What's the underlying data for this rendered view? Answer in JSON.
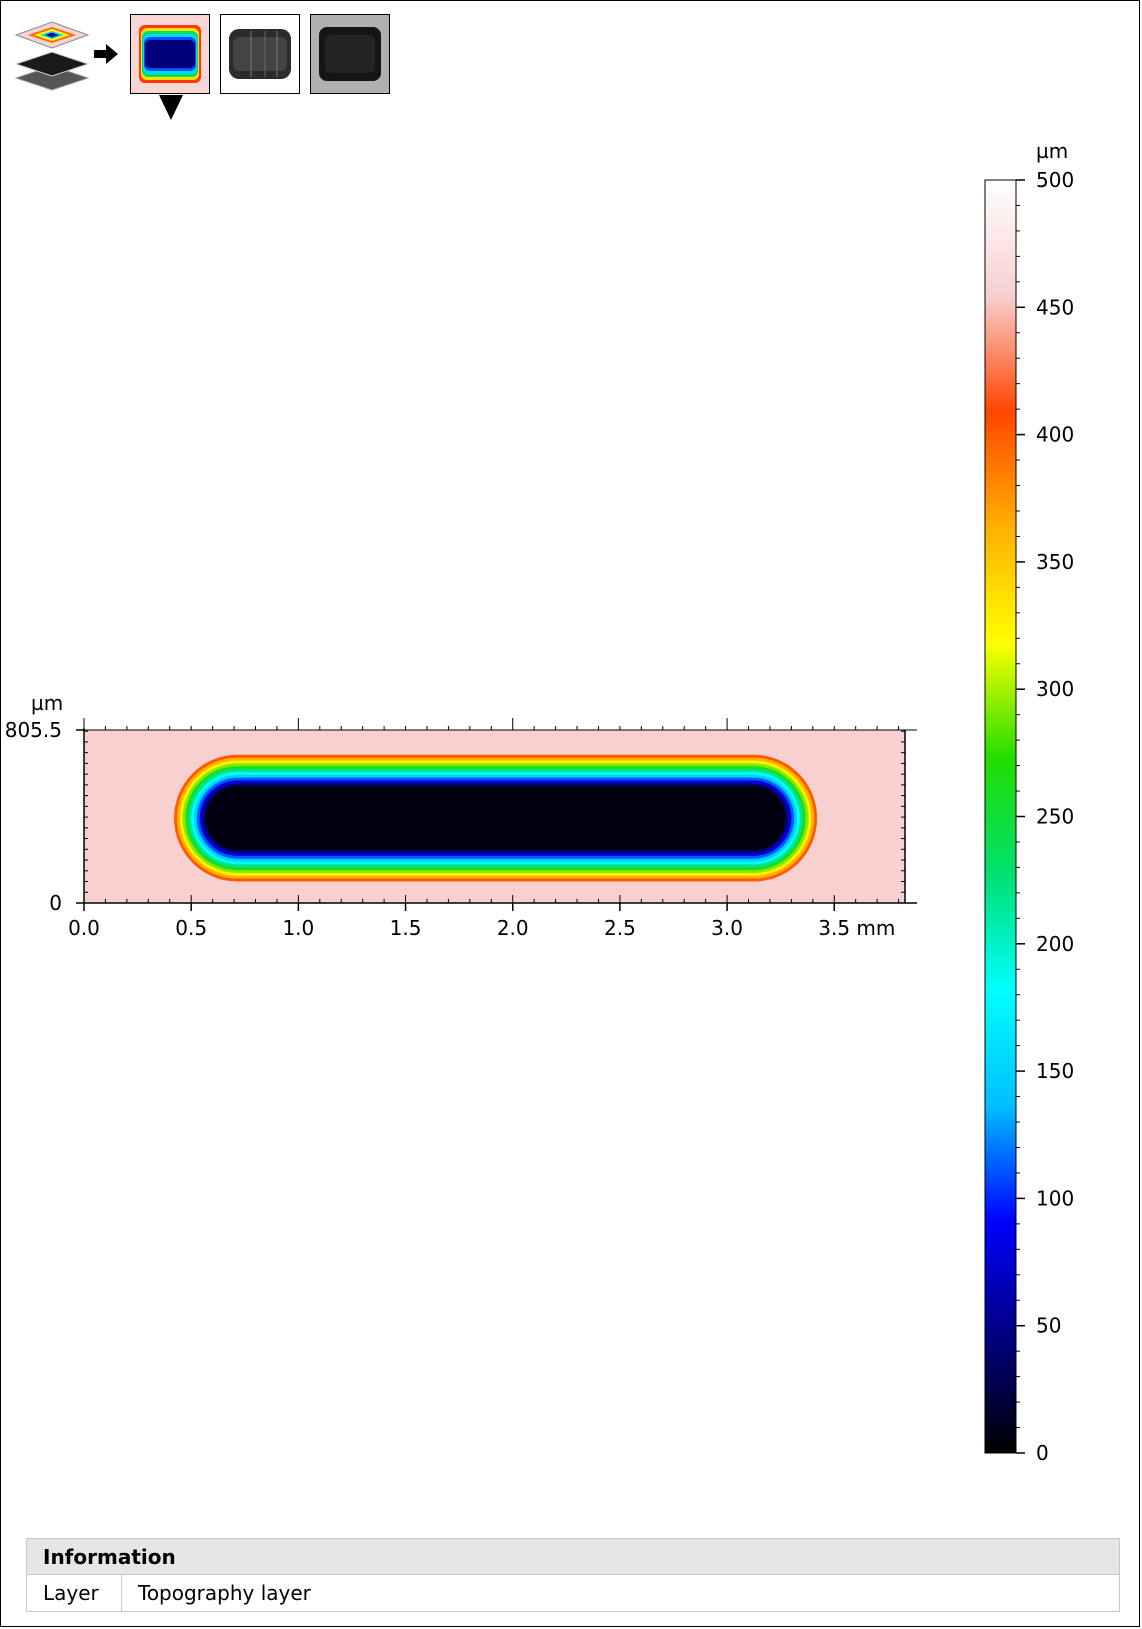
{
  "toolbar": {
    "icons": [
      "layers-icon",
      "arrow-right-icon",
      "selector-triangle-icon"
    ],
    "thumbnails": [
      {
        "name": "topography-thumbnail",
        "selected": true
      },
      {
        "name": "intensity-thumbnail",
        "selected": false
      },
      {
        "name": "texture-thumbnail",
        "selected": false
      }
    ]
  },
  "chart_data": {
    "type": "heatmap",
    "x_axis": {
      "ticks": [
        "0.0",
        "0.5",
        "1.0",
        "1.5",
        "2.0",
        "2.5",
        "3.0",
        "3.5 mm"
      ],
      "tick_values": [
        0.0,
        0.5,
        1.0,
        1.5,
        2.0,
        2.5,
        3.0,
        3.5
      ],
      "unit": "mm",
      "range": [
        0,
        3.83
      ]
    },
    "y_axis": {
      "unit_label": "µm",
      "ticks": [
        "0",
        "805.5"
      ],
      "tick_values": [
        0,
        805.5
      ],
      "range": [
        0,
        805.5
      ]
    },
    "colorbar": {
      "unit_label": "µm",
      "ticks": [
        "0",
        "50",
        "100",
        "150",
        "200",
        "250",
        "300",
        "350",
        "400",
        "450",
        "500"
      ],
      "tick_values": [
        0,
        50,
        100,
        150,
        200,
        250,
        300,
        350,
        400,
        450,
        500
      ],
      "range": [
        0,
        500
      ],
      "colors": [
        "#000000",
        "#000080",
        "#0000ff",
        "#00bfff",
        "#00ffff",
        "#00e070",
        "#22dd00",
        "#ffff00",
        "#ffb000",
        "#ff4500",
        "#f8d0d0",
        "#ffffff"
      ]
    },
    "surface": {
      "background_height": 455,
      "slot": {
        "x_range": [
          0.42,
          3.42
        ],
        "y_range": [
          100,
          690
        ],
        "floor_height": 5,
        "rim_height": 400
      }
    }
  },
  "info": {
    "heading": "Information",
    "rows": [
      {
        "key": "Layer",
        "value": "Topography layer"
      }
    ]
  }
}
